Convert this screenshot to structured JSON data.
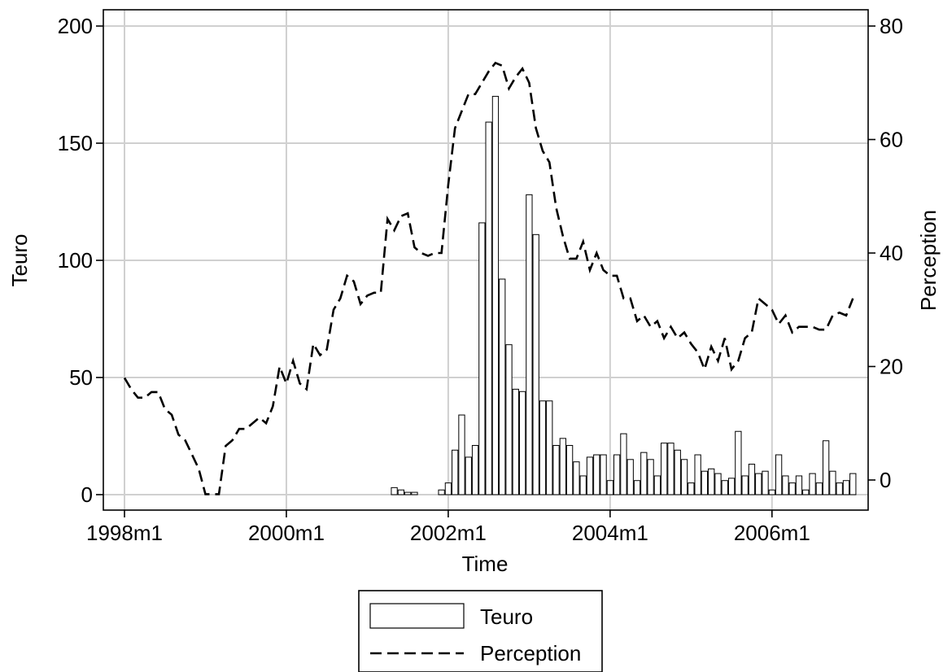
{
  "chart_data": {
    "type": "bar",
    "xlabel": "Time",
    "ylabel_left": "Teuro",
    "ylabel_right": "Perception",
    "x_ticks": [
      "1998m1",
      "2000m1",
      "2002m1",
      "2004m1",
      "2006m1"
    ],
    "x_range": [
      "1998m1",
      "2006m12"
    ],
    "ylim_left": [
      0,
      200
    ],
    "yticks_left": [
      "0",
      "50",
      "100",
      "150",
      "200"
    ],
    "ylim_right": [
      0,
      80
    ],
    "yticks_right": [
      "0",
      "20",
      "40",
      "60",
      "80"
    ],
    "grid": true,
    "legend_position": "bottom",
    "series": [
      {
        "name": "Teuro",
        "type": "bar",
        "axis": "left",
        "start": "2001m5",
        "values": [
          3,
          2,
          1,
          1,
          0,
          0,
          0,
          2,
          5,
          19,
          34,
          16,
          21,
          116,
          159,
          170,
          92,
          64,
          45,
          44,
          128,
          111,
          40,
          40,
          21,
          24,
          21,
          14,
          8,
          16,
          17,
          17,
          6,
          17,
          26,
          15,
          6,
          18,
          15,
          8,
          22,
          22,
          19,
          15,
          5,
          17,
          10,
          11,
          9,
          6,
          7,
          27,
          8,
          13,
          9,
          10,
          2,
          17,
          8,
          5,
          8,
          2,
          9,
          5,
          23,
          10,
          5,
          6,
          9
        ]
      },
      {
        "name": "Perception",
        "type": "line",
        "axis": "right",
        "start": "1998m1",
        "values": [
          18,
          16,
          14.5,
          14.5,
          15.5,
          15.5,
          12.5,
          11.5,
          8,
          7,
          4.5,
          2,
          -2.5,
          -2.5,
          -2.5,
          6,
          7,
          9,
          9,
          10,
          11,
          10,
          13,
          20,
          17,
          21,
          17,
          16,
          24,
          22,
          23,
          30,
          32,
          36,
          35,
          31,
          32.5,
          33,
          33,
          46,
          44,
          46.5,
          47,
          41,
          40,
          39.5,
          40,
          40,
          52,
          62,
          65,
          68,
          68,
          70,
          72,
          73.5,
          73,
          69,
          71,
          72.5,
          70,
          62,
          58,
          56,
          48,
          43,
          39,
          39,
          42,
          37,
          40,
          37,
          36,
          36,
          32,
          32,
          28,
          29,
          27,
          28,
          25,
          27,
          25,
          26,
          24,
          22.5,
          19.5,
          23.5,
          21,
          25,
          19.5,
          21,
          25,
          26,
          32,
          31,
          30,
          27.5,
          29,
          26,
          27,
          27,
          27,
          26.5,
          26.5,
          29,
          29.5,
          29,
          32
        ]
      }
    ]
  }
}
